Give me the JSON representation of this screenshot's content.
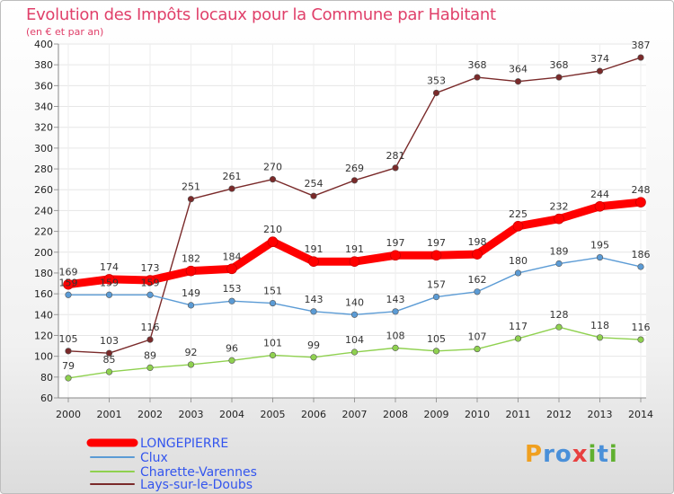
{
  "title": "Evolution des Impôts locaux pour la Commune par Habitant",
  "subtitle": "(en € et par an)",
  "logo": {
    "letters": [
      "P",
      "r",
      "o",
      "x",
      "i",
      "t",
      "i"
    ],
    "colors": [
      "#f0a020",
      "#4a90d9",
      "#4a90d9",
      "#e84040",
      "#60b030",
      "#4a90d9",
      "#60b030"
    ]
  },
  "chart_data": {
    "type": "line",
    "x": [
      "2000",
      "2001",
      "2002",
      "2003",
      "2004",
      "2005",
      "2006",
      "2007",
      "2008",
      "2009",
      "2010",
      "2011",
      "2012",
      "2013",
      "2014"
    ],
    "ylim": [
      60,
      400
    ],
    "yticks": [
      60,
      80,
      100,
      120,
      140,
      160,
      180,
      200,
      220,
      240,
      260,
      280,
      300,
      320,
      340,
      360,
      380,
      400
    ],
    "grid": true,
    "legend_position": "bottom-left",
    "series": [
      {
        "name": "LONGEPIERRE",
        "color": "#ff0000",
        "values": [
          169,
          174,
          173,
          182,
          184,
          210,
          191,
          191,
          197,
          197,
          198,
          225,
          232,
          244,
          248
        ]
      },
      {
        "name": "Clux",
        "color": "#5b9bd5",
        "values": [
          159,
          159,
          159,
          149,
          153,
          151,
          143,
          140,
          143,
          157,
          162,
          180,
          189,
          195,
          186
        ]
      },
      {
        "name": "Charette-Varennes",
        "color": "#8fd14f",
        "values": [
          79,
          85,
          89,
          92,
          96,
          101,
          99,
          104,
          108,
          105,
          107,
          117,
          128,
          118,
          116
        ]
      },
      {
        "name": "Lays-sur-le-Doubs",
        "color": "#7a2a2a",
        "values": [
          105,
          103,
          116,
          251,
          261,
          270,
          254,
          269,
          281,
          353,
          368,
          364,
          368,
          374,
          387
        ]
      }
    ],
    "data_labels": [
      {
        "series": 3,
        "values": [
          "105",
          "103",
          "116",
          "251",
          "261",
          "270",
          "254",
          "269",
          "281",
          "353",
          "368",
          "364",
          "368",
          "374",
          "387"
        ]
      },
      {
        "series": 0,
        "values": [
          "169",
          "174",
          "173",
          "182",
          "184",
          "210",
          "191",
          "191",
          "197",
          "197",
          "198",
          "225",
          "232",
          "244",
          "248"
        ]
      },
      {
        "series": 1,
        "values": [
          "159",
          "159",
          "159",
          "149",
          "153",
          "151",
          "143",
          "140",
          "143",
          "157",
          "162",
          "180",
          "189",
          "195",
          "186"
        ]
      },
      {
        "series": 2,
        "values": [
          "79",
          "85",
          "89",
          "92",
          "96",
          "101",
          "99",
          "104",
          "108",
          "105",
          "107",
          "117",
          "128",
          "118",
          "116"
        ]
      }
    ]
  }
}
